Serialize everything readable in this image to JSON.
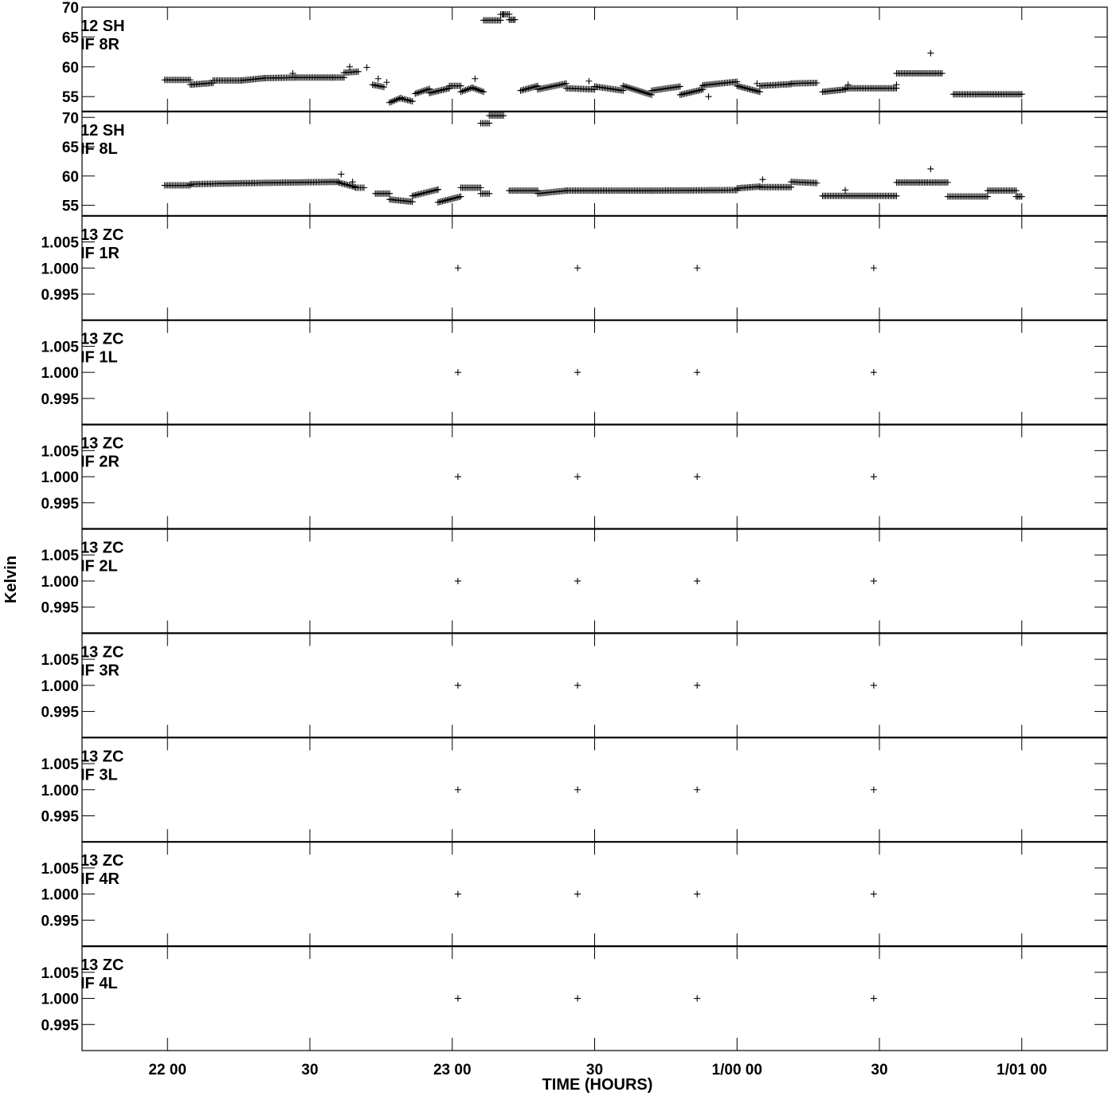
{
  "chart_data": {
    "type": "scatter",
    "title": "",
    "xlabel": "TIME (HOURS)",
    "ylabel": "Kelvin",
    "xlim": [
      21.7,
      25.3
    ],
    "x_ticks": [
      {
        "x": 22.0,
        "label": "22 00"
      },
      {
        "x": 22.5,
        "label": "30"
      },
      {
        "x": 23.0,
        "label": "23 00"
      },
      {
        "x": 23.5,
        "label": "30"
      },
      {
        "x": 24.0,
        "label": "1/00 00"
      },
      {
        "x": 24.5,
        "label": "30"
      },
      {
        "x": 25.0,
        "label": "1/01 00"
      }
    ],
    "marker": "+",
    "panels": [
      {
        "label_line1": "12 SH",
        "label_line2": "IF 8R",
        "ylim": [
          52.5,
          70
        ],
        "y_ticks": [
          55,
          60,
          65,
          70
        ],
        "y_tick_labels": [
          "55",
          "60",
          "65",
          "70"
        ],
        "segments": [
          [
            21.99,
            22.08,
            57.8,
            57.8
          ],
          [
            22.08,
            22.16,
            57.0,
            57.3
          ],
          [
            22.16,
            22.26,
            57.7,
            57.7
          ],
          [
            22.26,
            22.34,
            57.7,
            58.1
          ],
          [
            22.34,
            22.45,
            58.1,
            58.2
          ],
          [
            22.45,
            22.58,
            58.2,
            58.2
          ],
          [
            22.58,
            22.62,
            58.2,
            58.2
          ],
          [
            22.62,
            22.67,
            59.0,
            59.2
          ],
          [
            22.72,
            22.76,
            57.0,
            56.6
          ],
          [
            22.78,
            22.82,
            54.0,
            54.8
          ],
          [
            22.82,
            22.86,
            54.7,
            54.2
          ],
          [
            22.87,
            22.92,
            55.5,
            56.3
          ],
          [
            22.92,
            22.99,
            55.6,
            56.4
          ],
          [
            22.99,
            23.03,
            56.8,
            56.8
          ],
          [
            23.03,
            23.07,
            55.8,
            56.5
          ],
          [
            23.07,
            23.11,
            56.5,
            55.8
          ],
          [
            23.11,
            23.17,
            67.8,
            67.8
          ],
          [
            23.17,
            23.2,
            68.8,
            68.8
          ],
          [
            23.2,
            23.22,
            67.9,
            67.9
          ],
          [
            23.24,
            23.3,
            56.0,
            56.8
          ],
          [
            23.3,
            23.4,
            56.2,
            57.2
          ],
          [
            23.4,
            23.5,
            56.4,
            56.2
          ],
          [
            23.5,
            23.6,
            56.7,
            56.0
          ],
          [
            23.6,
            23.7,
            56.8,
            55.3
          ],
          [
            23.7,
            23.8,
            56.0,
            56.7
          ],
          [
            23.8,
            23.88,
            55.3,
            56.2
          ],
          [
            23.88,
            24.0,
            56.9,
            57.5
          ],
          [
            24.0,
            24.08,
            56.8,
            55.8
          ],
          [
            24.08,
            24.19,
            56.8,
            57.1
          ],
          [
            24.19,
            24.28,
            57.2,
            57.3
          ],
          [
            24.3,
            24.38,
            55.8,
            56.2
          ],
          [
            24.38,
            24.56,
            56.4,
            56.4
          ],
          [
            24.56,
            24.72,
            58.9,
            58.9
          ],
          [
            24.76,
            25.0,
            55.4,
            55.4
          ]
        ],
        "points": [
          {
            "x": 22.44,
            "y": 58.9
          },
          {
            "x": 22.64,
            "y": 60.0
          },
          {
            "x": 22.7,
            "y": 59.9
          },
          {
            "x": 22.74,
            "y": 58.0
          },
          {
            "x": 22.77,
            "y": 57.4
          },
          {
            "x": 23.08,
            "y": 58.0
          },
          {
            "x": 23.18,
            "y": 68.8
          },
          {
            "x": 23.48,
            "y": 57.6
          },
          {
            "x": 23.88,
            "y": 56.8
          },
          {
            "x": 24.07,
            "y": 57.2
          },
          {
            "x": 24.39,
            "y": 57.0
          },
          {
            "x": 24.56,
            "y": 57.0
          },
          {
            "x": 24.68,
            "y": 62.3
          },
          {
            "x": 23.9,
            "y": 55.0
          }
        ]
      },
      {
        "label_line1": "12 SH",
        "label_line2": "IF 8L",
        "ylim": [
          53.2,
          71
        ],
        "y_ticks": [
          55,
          60,
          65,
          70
        ],
        "y_tick_labels": [
          "55",
          "60",
          "65",
          "70"
        ],
        "segments": [
          [
            21.99,
            22.08,
            58.4,
            58.4
          ],
          [
            22.08,
            22.3,
            58.6,
            58.8
          ],
          [
            22.3,
            22.6,
            58.8,
            59.0
          ],
          [
            22.6,
            22.66,
            58.9,
            58.1
          ],
          [
            22.66,
            22.69,
            58.0,
            58.0
          ],
          [
            22.73,
            22.78,
            57.0,
            57.0
          ],
          [
            22.78,
            22.86,
            56.0,
            55.6
          ],
          [
            22.86,
            22.95,
            56.6,
            57.7
          ],
          [
            22.95,
            23.03,
            55.5,
            56.5
          ],
          [
            23.03,
            23.1,
            58.0,
            58.0
          ],
          [
            23.1,
            23.13,
            57.0,
            57.0
          ],
          [
            23.1,
            23.13,
            69.0,
            69.0
          ],
          [
            23.13,
            23.18,
            70.3,
            70.3
          ],
          [
            23.2,
            23.3,
            57.5,
            57.5
          ],
          [
            23.3,
            23.4,
            57.0,
            57.5
          ],
          [
            23.4,
            23.7,
            57.5,
            57.5
          ],
          [
            23.7,
            24.0,
            57.5,
            57.6
          ],
          [
            24.0,
            24.08,
            57.9,
            58.2
          ],
          [
            24.08,
            24.19,
            58.1,
            58.1
          ],
          [
            24.19,
            24.28,
            59.0,
            58.8
          ],
          [
            24.3,
            24.56,
            56.6,
            56.6
          ],
          [
            24.56,
            24.74,
            58.9,
            58.9
          ],
          [
            24.74,
            24.88,
            56.5,
            56.5
          ],
          [
            24.88,
            24.98,
            57.5,
            57.5
          ],
          [
            24.98,
            25.0,
            56.5,
            56.5
          ]
        ],
        "points": [
          {
            "x": 22.61,
            "y": 60.3
          },
          {
            "x": 22.65,
            "y": 59.0
          },
          {
            "x": 22.95,
            "y": 57.7
          },
          {
            "x": 24.09,
            "y": 59.4
          },
          {
            "x": 24.38,
            "y": 57.6
          },
          {
            "x": 24.68,
            "y": 61.2
          }
        ]
      },
      {
        "label_line1": "13 ZC",
        "label_line2": "IF 1R",
        "ylim": [
          0.99,
          1.01
        ],
        "y_ticks": [
          0.995,
          1.0,
          1.005
        ],
        "y_tick_labels": [
          "0.995",
          "1.000",
          "1.005"
        ],
        "segments": [],
        "points": [
          {
            "x": 23.02,
            "y": 1.0
          },
          {
            "x": 23.44,
            "y": 1.0
          },
          {
            "x": 23.86,
            "y": 1.0
          },
          {
            "x": 24.48,
            "y": 1.0
          }
        ]
      },
      {
        "label_line1": "13 ZC",
        "label_line2": "IF 1L",
        "ylim": [
          0.99,
          1.01
        ],
        "y_ticks": [
          0.995,
          1.0,
          1.005
        ],
        "y_tick_labels": [
          "0.995",
          "1.000",
          "1.005"
        ],
        "segments": [],
        "points": [
          {
            "x": 23.02,
            "y": 1.0
          },
          {
            "x": 23.44,
            "y": 1.0
          },
          {
            "x": 23.86,
            "y": 1.0
          },
          {
            "x": 24.48,
            "y": 1.0
          }
        ]
      },
      {
        "label_line1": "13 ZC",
        "label_line2": "IF 2R",
        "ylim": [
          0.99,
          1.01
        ],
        "y_ticks": [
          0.995,
          1.0,
          1.005
        ],
        "y_tick_labels": [
          "0.995",
          "1.000",
          "1.005"
        ],
        "segments": [],
        "points": [
          {
            "x": 23.02,
            "y": 1.0
          },
          {
            "x": 23.44,
            "y": 1.0
          },
          {
            "x": 23.86,
            "y": 1.0
          },
          {
            "x": 24.48,
            "y": 1.0
          }
        ]
      },
      {
        "label_line1": "13 ZC",
        "label_line2": "IF 2L",
        "ylim": [
          0.99,
          1.01
        ],
        "y_ticks": [
          0.995,
          1.0,
          1.005
        ],
        "y_tick_labels": [
          "0.995",
          "1.000",
          "1.005"
        ],
        "segments": [],
        "points": [
          {
            "x": 23.02,
            "y": 1.0
          },
          {
            "x": 23.44,
            "y": 1.0
          },
          {
            "x": 23.86,
            "y": 1.0
          },
          {
            "x": 24.48,
            "y": 1.0
          }
        ]
      },
      {
        "label_line1": "13 ZC",
        "label_line2": "IF 3R",
        "ylim": [
          0.99,
          1.01
        ],
        "y_ticks": [
          0.995,
          1.0,
          1.005
        ],
        "y_tick_labels": [
          "0.995",
          "1.000",
          "1.005"
        ],
        "segments": [],
        "points": [
          {
            "x": 23.02,
            "y": 1.0
          },
          {
            "x": 23.44,
            "y": 1.0
          },
          {
            "x": 23.86,
            "y": 1.0
          },
          {
            "x": 24.48,
            "y": 1.0
          }
        ]
      },
      {
        "label_line1": "13 ZC",
        "label_line2": "IF 3L",
        "ylim": [
          0.99,
          1.01
        ],
        "y_ticks": [
          0.995,
          1.0,
          1.005
        ],
        "y_tick_labels": [
          "0.995",
          "1.000",
          "1.005"
        ],
        "segments": [],
        "points": [
          {
            "x": 23.02,
            "y": 1.0
          },
          {
            "x": 23.44,
            "y": 1.0
          },
          {
            "x": 23.86,
            "y": 1.0
          },
          {
            "x": 24.48,
            "y": 1.0
          }
        ]
      },
      {
        "label_line1": "13 ZC",
        "label_line2": "IF 4R",
        "ylim": [
          0.99,
          1.01
        ],
        "y_ticks": [
          0.995,
          1.0,
          1.005
        ],
        "y_tick_labels": [
          "0.995",
          "1.000",
          "1.005"
        ],
        "segments": [],
        "points": [
          {
            "x": 23.02,
            "y": 1.0
          },
          {
            "x": 23.44,
            "y": 1.0
          },
          {
            "x": 23.86,
            "y": 1.0
          },
          {
            "x": 24.48,
            "y": 1.0
          }
        ]
      },
      {
        "label_line1": "13 ZC",
        "label_line2": "IF 4L",
        "ylim": [
          0.99,
          1.01
        ],
        "y_ticks": [
          0.995,
          1.0,
          1.005
        ],
        "y_tick_labels": [
          "0.995",
          "1.000",
          "1.005"
        ],
        "segments": [],
        "points": [
          {
            "x": 23.02,
            "y": 1.0
          },
          {
            "x": 23.44,
            "y": 1.0
          },
          {
            "x": 23.86,
            "y": 1.0
          },
          {
            "x": 24.48,
            "y": 1.0
          }
        ]
      }
    ]
  }
}
